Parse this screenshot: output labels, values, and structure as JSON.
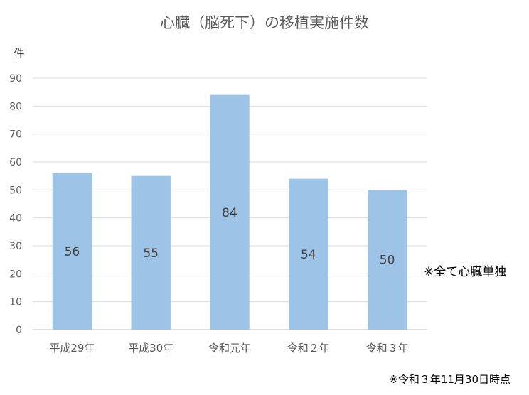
{
  "chart_data": {
    "type": "bar",
    "title": "心臓（脳死下）の移植実施件数",
    "ylabel": "件",
    "xlabel": "",
    "categories": [
      "平成29年",
      "平成30年",
      "令和元年",
      "令和２年",
      "令和３年"
    ],
    "values": [
      56,
      55,
      84,
      54,
      50
    ],
    "ylim": [
      0,
      90
    ],
    "yticks": [
      0,
      10,
      20,
      30,
      40,
      50,
      60,
      70,
      80,
      90
    ],
    "grid": true,
    "bar_color": "#9dc3e6",
    "data_labels": true,
    "annotations": [
      "※全て心臓単独",
      "※令和３年11月30日時点"
    ]
  }
}
